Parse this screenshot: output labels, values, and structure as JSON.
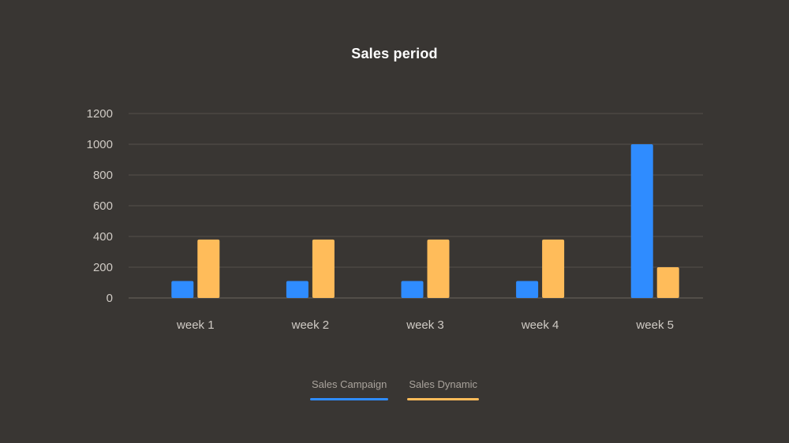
{
  "chart_data": {
    "type": "bar",
    "title": "Sales period",
    "categories": [
      "week 1",
      "week 2",
      "week 3",
      "week 4",
      "week 5"
    ],
    "series": [
      {
        "name": "Sales Campaign",
        "color": "#2f8cff",
        "values": [
          110,
          110,
          110,
          110,
          1000
        ]
      },
      {
        "name": "Sales Dynamic",
        "color": "#ffbc5a",
        "values": [
          380,
          380,
          380,
          380,
          200
        ]
      }
    ],
    "yticks": [
      "0",
      "200",
      "400",
      "600",
      "800",
      "1000",
      "1200"
    ],
    "ylim": [
      0,
      1200
    ],
    "xlabel": "",
    "ylabel": "",
    "grid": true,
    "legend_position": "bottom-center"
  }
}
